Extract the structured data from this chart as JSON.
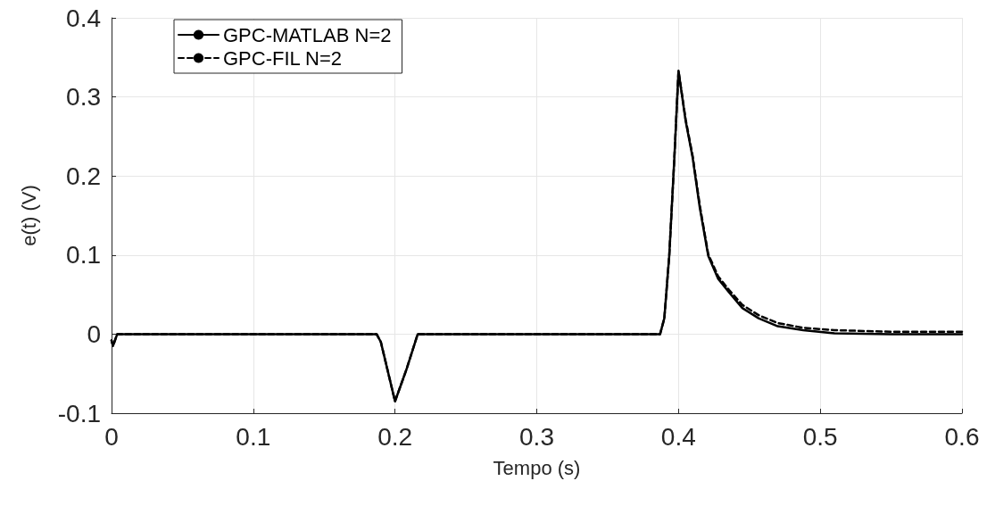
{
  "chart_data": {
    "type": "line",
    "xlabel": "Tempo (s)",
    "ylabel": "e(t) (V)",
    "xlim": [
      0,
      0.6
    ],
    "ylim": [
      -0.1,
      0.4
    ],
    "xticks": [
      0,
      0.1,
      0.2,
      0.3,
      0.4,
      0.5,
      0.6
    ],
    "yticks": [
      -0.1,
      0,
      0.1,
      0.2,
      0.3,
      0.4
    ],
    "grid": true,
    "legend": "top left",
    "marker": "none",
    "series": [
      {
        "name": "GPC-MATLAB N=2",
        "color": "#000000",
        "line_style": "solid",
        "x": [
          0,
          0.001,
          0.002,
          0.004,
          0.1,
          0.187,
          0.19,
          0.194,
          0.2,
          0.208,
          0.216,
          0.3,
          0.387,
          0.39,
          0.3935,
          0.397,
          0.4,
          0.405,
          0.41,
          0.415,
          0.421,
          0.428,
          0.4356,
          0.445,
          0.4565,
          0.47,
          0.488,
          0.51,
          0.55,
          0.6
        ],
        "values": [
          -0.008,
          -0.015,
          -0.01,
          0,
          0,
          0,
          -0.01,
          -0.04,
          -0.085,
          -0.045,
          0,
          0,
          0,
          0.02,
          0.1,
          0.22,
          0.333,
          0.27,
          0.223,
          0.16,
          0.099,
          0.07,
          0.053,
          0.033,
          0.02,
          0.01,
          0.005,
          0.001,
          0,
          0
        ]
      },
      {
        "name": "GPC-FIL N=2",
        "color": "#000000",
        "line_style": "dashed",
        "x": [
          0,
          0.001,
          0.002,
          0.004,
          0.1,
          0.187,
          0.19,
          0.194,
          0.2,
          0.208,
          0.216,
          0.3,
          0.387,
          0.39,
          0.3935,
          0.397,
          0.4,
          0.405,
          0.41,
          0.415,
          0.421,
          0.428,
          0.4356,
          0.445,
          0.4565,
          0.47,
          0.488,
          0.51,
          0.55,
          0.6
        ],
        "values": [
          -0.008,
          -0.015,
          -0.01,
          0,
          0,
          0,
          -0.01,
          -0.04,
          -0.085,
          -0.045,
          0,
          0,
          0,
          0.02,
          0.1,
          0.22,
          0.333,
          0.272,
          0.225,
          0.163,
          0.101,
          0.073,
          0.056,
          0.037,
          0.024,
          0.014,
          0.008,
          0.005,
          0.003,
          0.003
        ]
      }
    ]
  }
}
